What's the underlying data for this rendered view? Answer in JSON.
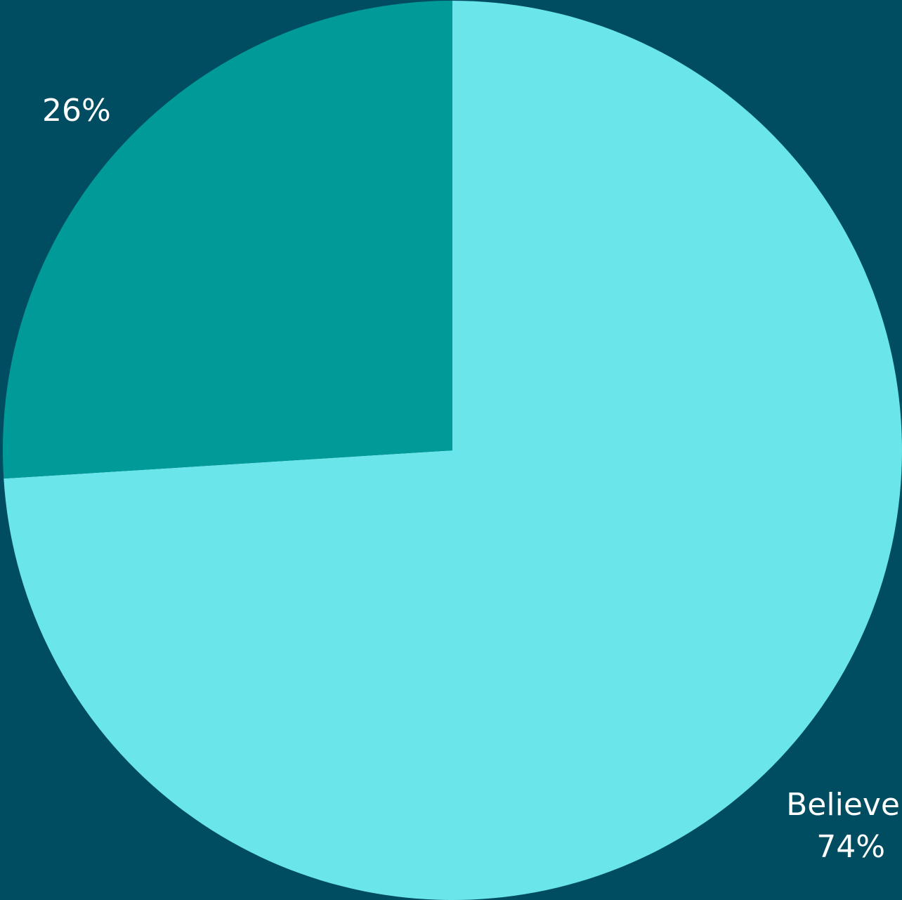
{
  "chart_data": {
    "type": "pie",
    "background_color": "#004d61",
    "start_angle_deg": 0,
    "direction": "clockwise",
    "slices": [
      {
        "label": "Believe",
        "value": 74,
        "value_label": "74%",
        "color": "#6ae5e9"
      },
      {
        "label": "",
        "value": 26,
        "value_label": "26%",
        "color": "#009b98"
      }
    ]
  }
}
